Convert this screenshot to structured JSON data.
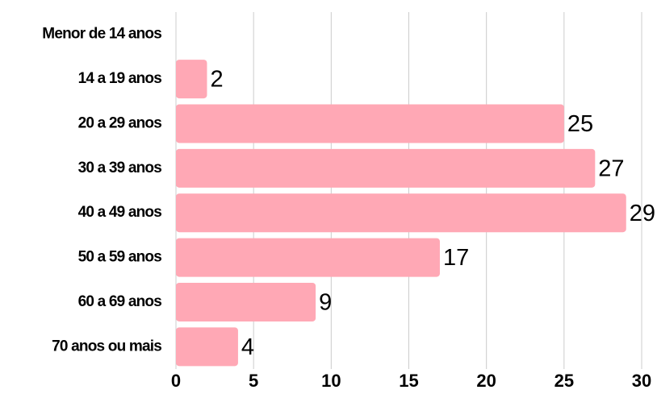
{
  "chart_data": {
    "type": "barh",
    "categories": [
      "Menor de 14 anos",
      "14 a 19 anos",
      "20 a 29 anos",
      "30 a 39 anos",
      "40 a 49 anos",
      "50 a 59 anos",
      "60 a 69 anos",
      "70 anos ou mais"
    ],
    "values": [
      0,
      2,
      25,
      27,
      29,
      17,
      9,
      4
    ],
    "color": "#ffa8b5",
    "xlim": [
      0,
      30
    ],
    "xticks": [
      0,
      5,
      10,
      15,
      20,
      25,
      30
    ],
    "grid": true
  }
}
